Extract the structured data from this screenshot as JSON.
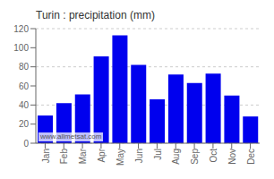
{
  "chart_data": {
    "type": "bar",
    "title": "Turin : precipitation (mm)",
    "categories": [
      "Jan",
      "Feb",
      "Mar",
      "Apr",
      "May",
      "Jun",
      "Jul",
      "Aug",
      "Sep",
      "Oct",
      "Nov",
      "Dec"
    ],
    "values": [
      29,
      42,
      51,
      91,
      113,
      82,
      46,
      72,
      63,
      73,
      50,
      28
    ],
    "color": "#0000ee",
    "ylim": [
      0,
      120
    ],
    "yticks": [
      0,
      20,
      40,
      60,
      80,
      100,
      120
    ],
    "grid": true,
    "annotation": "www.allmetsat.com"
  }
}
